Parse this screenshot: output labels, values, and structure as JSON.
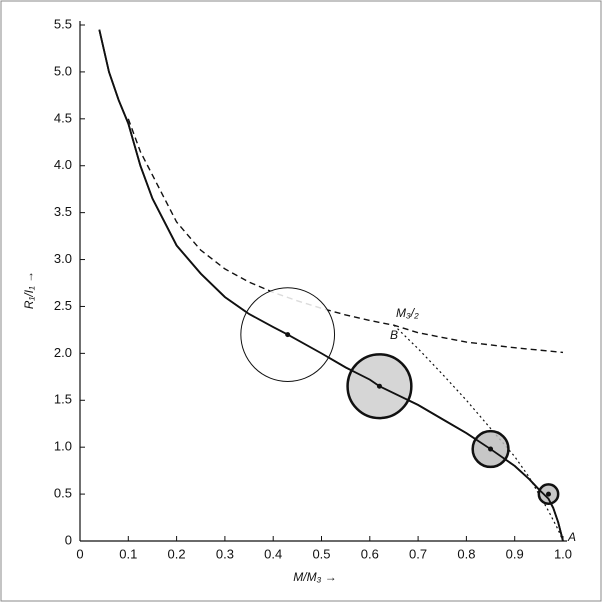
{
  "chart_data": {
    "type": "line",
    "x_label": "M/M₃ →",
    "y_label": "R₁/I₁ →",
    "annotations": [
      "M₃/₂",
      "B",
      "A"
    ],
    "xlim": [
      0,
      1
    ],
    "ylim": [
      0,
      5.5
    ],
    "xticks": [
      0,
      0.1,
      0.2,
      0.3,
      0.4,
      0.5,
      0.6,
      0.7,
      0.8,
      0.9,
      {
        "value": 1,
        "label": "1.0"
      }
    ],
    "yticks": [
      0,
      0.5,
      {
        "value": 1,
        "label": "1.0"
      },
      1.5,
      {
        "value": 2,
        "label": "2.0"
      },
      2.5,
      {
        "value": 3,
        "label": "3.0"
      },
      3.5,
      {
        "value": 4,
        "label": "4.0"
      },
      4.5,
      {
        "value": 5,
        "label": "5.0"
      },
      5.5
    ],
    "series": [
      {
        "color": "#111111",
        "style": "solid",
        "x": [
          0.04,
          0.06,
          0.08,
          0.1,
          0.125,
          0.15,
          0.2,
          0.25,
          0.3,
          0.35,
          0.4,
          0.43,
          0.5,
          0.55,
          0.6,
          0.62,
          0.7,
          0.75,
          0.8,
          0.85,
          0.9,
          0.93,
          0.95,
          0.97,
          0.98,
          0.99,
          1.0
        ],
        "values": [
          5.45,
          5.0,
          4.7,
          4.45,
          4.0,
          3.65,
          3.15,
          2.85,
          2.6,
          2.42,
          2.28,
          2.2,
          2.0,
          1.85,
          1.72,
          1.65,
          1.45,
          1.3,
          1.15,
          0.98,
          0.8,
          0.66,
          0.55,
          0.45,
          0.35,
          0.2,
          0
        ]
      },
      {
        "color": "#111111",
        "style": "dashed",
        "x": [
          0.1,
          0.125,
          0.15,
          0.2,
          0.25,
          0.3,
          0.35,
          0.4,
          0.45,
          0.5,
          0.55,
          0.6,
          0.65,
          0.7,
          0.8,
          0.9,
          1.0
        ],
        "values": [
          4.5,
          4.15,
          3.9,
          3.4,
          3.1,
          2.9,
          2.76,
          2.65,
          2.56,
          2.48,
          2.41,
          2.35,
          2.3,
          2.22,
          2.12,
          2.06,
          2.01
        ]
      },
      {
        "color": "#111111",
        "style": "dotted",
        "x": [
          0.65,
          0.7,
          0.75,
          0.8,
          0.85,
          0.9,
          0.93,
          0.95,
          0.97,
          0.99,
          1.0
        ],
        "values": [
          2.3,
          2.05,
          1.78,
          1.5,
          1.2,
          0.9,
          0.68,
          0.5,
          0.32,
          0.12,
          0
        ]
      }
    ],
    "bubbles": {
      "x": [
        0.43,
        0.62,
        0.85,
        0.97
      ],
      "values": [
        2.2,
        1.65,
        0.98,
        0.5
      ],
      "sizes": [
        0.097,
        0.066,
        0.037,
        0.02
      ],
      "fills": [
        "#ffffff",
        "#cfcfcf",
        "#bdbdbd",
        "#bdbdbd"
      ]
    }
  }
}
